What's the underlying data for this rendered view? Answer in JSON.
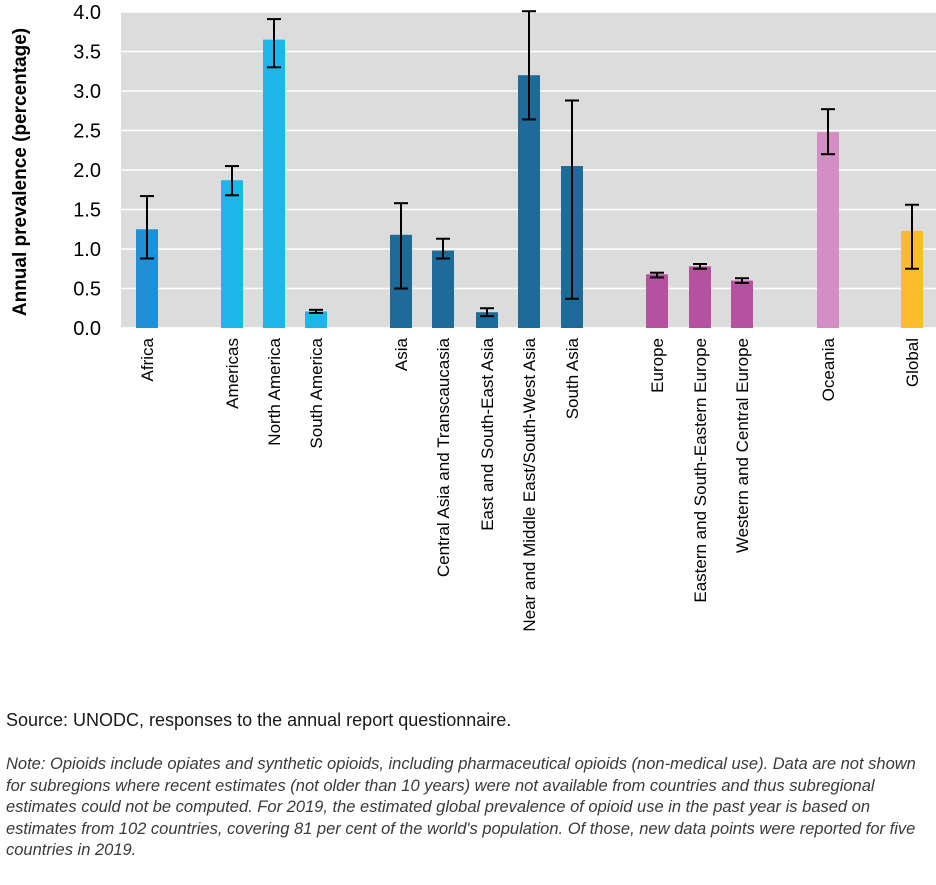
{
  "chart_data": {
    "type": "bar",
    "title": "",
    "xlabel": "",
    "ylabel": "Annual prevalence (percentage)",
    "ylim": [
      0,
      4.0
    ],
    "yticks": [
      "0.0",
      "0.5",
      "1.0",
      "1.5",
      "2.0",
      "2.5",
      "3.0",
      "3.5",
      "4.0"
    ],
    "gridlines": true,
    "error_bars": true,
    "groups": [
      {
        "name": "Africa",
        "color": "#1f8fd6"
      },
      {
        "name": "Americas",
        "color": "#1cb7e8"
      },
      {
        "name": "Asia",
        "color": "#1e6a99"
      },
      {
        "name": "Europe",
        "color": "#b5519e"
      },
      {
        "name": "Oceania",
        "color": "#d38fc3"
      },
      {
        "name": "Global",
        "color": "#fbbd2e"
      }
    ],
    "categories": [
      {
        "label": "Africa",
        "group": "Africa",
        "value": 1.25,
        "low": 0.88,
        "high": 1.67
      },
      {
        "label": "Americas",
        "group": "Americas",
        "value": 1.87,
        "low": 1.68,
        "high": 2.05
      },
      {
        "label": "North America",
        "group": "Americas",
        "value": 3.65,
        "low": 3.3,
        "high": 3.91
      },
      {
        "label": "South America",
        "group": "Americas",
        "value": 0.21,
        "low": 0.19,
        "high": 0.23
      },
      {
        "label": "Asia",
        "group": "Asia",
        "value": 1.18,
        "low": 0.5,
        "high": 1.58
      },
      {
        "label": "Central Asia and Transcaucasia",
        "group": "Asia",
        "value": 0.98,
        "low": 0.88,
        "high": 1.13
      },
      {
        "label": "East and South-East Asia",
        "group": "Asia",
        "value": 0.2,
        "low": 0.15,
        "high": 0.25
      },
      {
        "label": "Near and Middle East/South-West Asia",
        "group": "Asia",
        "value": 3.2,
        "low": 2.64,
        "high": 4.01
      },
      {
        "label": "South Asia",
        "group": "Asia",
        "value": 2.05,
        "low": 0.37,
        "high": 2.88
      },
      {
        "label": "Europe",
        "group": "Europe",
        "value": 0.68,
        "low": 0.64,
        "high": 0.7
      },
      {
        "label": "Eastern and South-Eastern Europe",
        "group": "Europe",
        "value": 0.78,
        "low": 0.75,
        "high": 0.81
      },
      {
        "label": "Western and Central Europe",
        "group": "Europe",
        "value": 0.6,
        "low": 0.57,
        "high": 0.63
      },
      {
        "label": "Oceania",
        "group": "Oceania",
        "value": 2.48,
        "low": 2.2,
        "high": 2.77
      },
      {
        "label": "Global",
        "group": "Global",
        "value": 1.23,
        "low": 0.75,
        "high": 1.56
      }
    ]
  },
  "source": "Source: UNODC, responses to the annual report questionnaire.",
  "note": "Note: Opioids include opiates and synthetic opioids, including pharmaceutical opioids (non-medical use). Data are not shown for subregions where recent estimates (not older than 10 years) were not available from countries and thus subregional estimates could not be computed. For 2019, the estimated global prevalence of opioid use in the past year is based on estimates from 102 countries, covering 81 per cent of the world's population. Of those, new data points were reported for five countries in 2019."
}
